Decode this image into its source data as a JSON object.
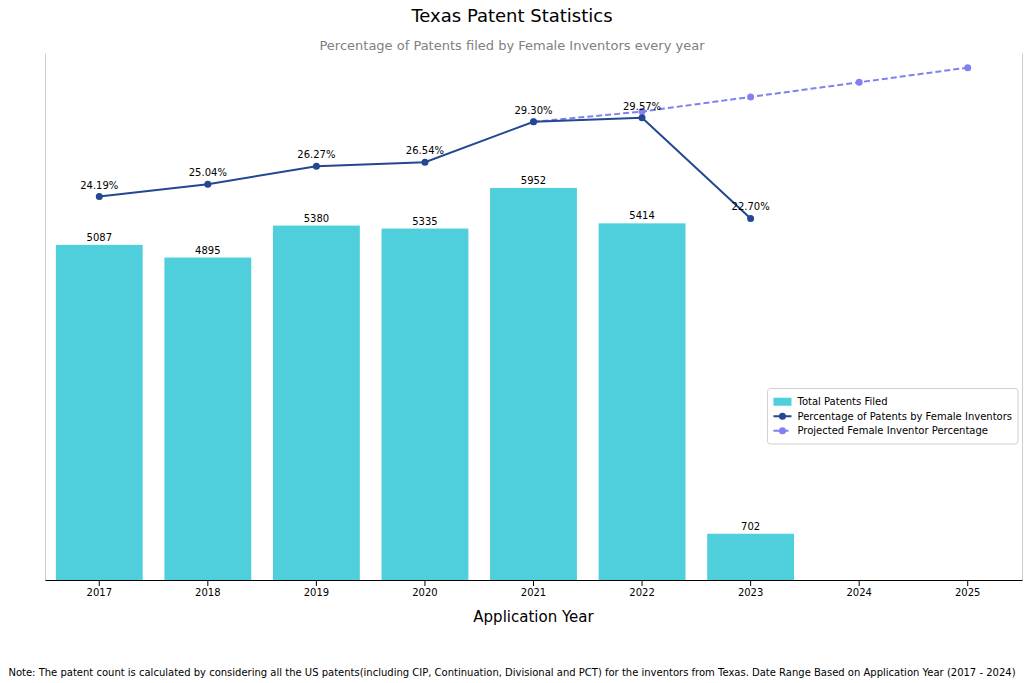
{
  "chart_data": {
    "type": "bar",
    "title": "Texas Patent Statistics",
    "subtitle": "Percentage of Patents filed by Female Inventors every year",
    "x_label": "Application Year",
    "note": "Note: The patent count is calculated by considering all the US patents(including CIP, Continuation, Divisional and PCT) for the inventors from Texas. Date Range Based on Application Year (2017 - 2024)",
    "categories": [
      "2017",
      "2018",
      "2019",
      "2020",
      "2021",
      "2022",
      "2023",
      "2024",
      "2025"
    ],
    "ylim": [
      0,
      8000
    ],
    "y2lim": [
      -2,
      34
    ],
    "tick_labels": "x",
    "legend": "center right",
    "series": [
      {
        "name": "Total Patents Filed",
        "type": "bar",
        "color": "#4ecfdb",
        "data_labels": true,
        "values": [
          5087,
          4895,
          5380,
          5335,
          5952,
          5414,
          702,
          null,
          null
        ]
      },
      {
        "name": "Percentage of Patents by Female Inventors",
        "type": "line",
        "axis": "y2",
        "color": "#234791",
        "marker": "circle",
        "line_style": "solid",
        "data_labels": true,
        "values": [
          24.19,
          25.04,
          26.27,
          26.54,
          29.3,
          29.57,
          22.7,
          null,
          null
        ],
        "value_labels": [
          "24.19%",
          "25.04%",
          "26.27%",
          "26.54%",
          "29.30%",
          "29.57%",
          "22.70%",
          null,
          null
        ]
      },
      {
        "name": "Projected Female Inventor Percentage",
        "type": "line",
        "axis": "y2",
        "color": "#8080f0",
        "marker": "circle",
        "line_style": "dashed",
        "values": [
          null,
          null,
          null,
          null,
          29.3,
          30.0,
          31.0,
          32.0,
          33.0
        ]
      }
    ]
  }
}
